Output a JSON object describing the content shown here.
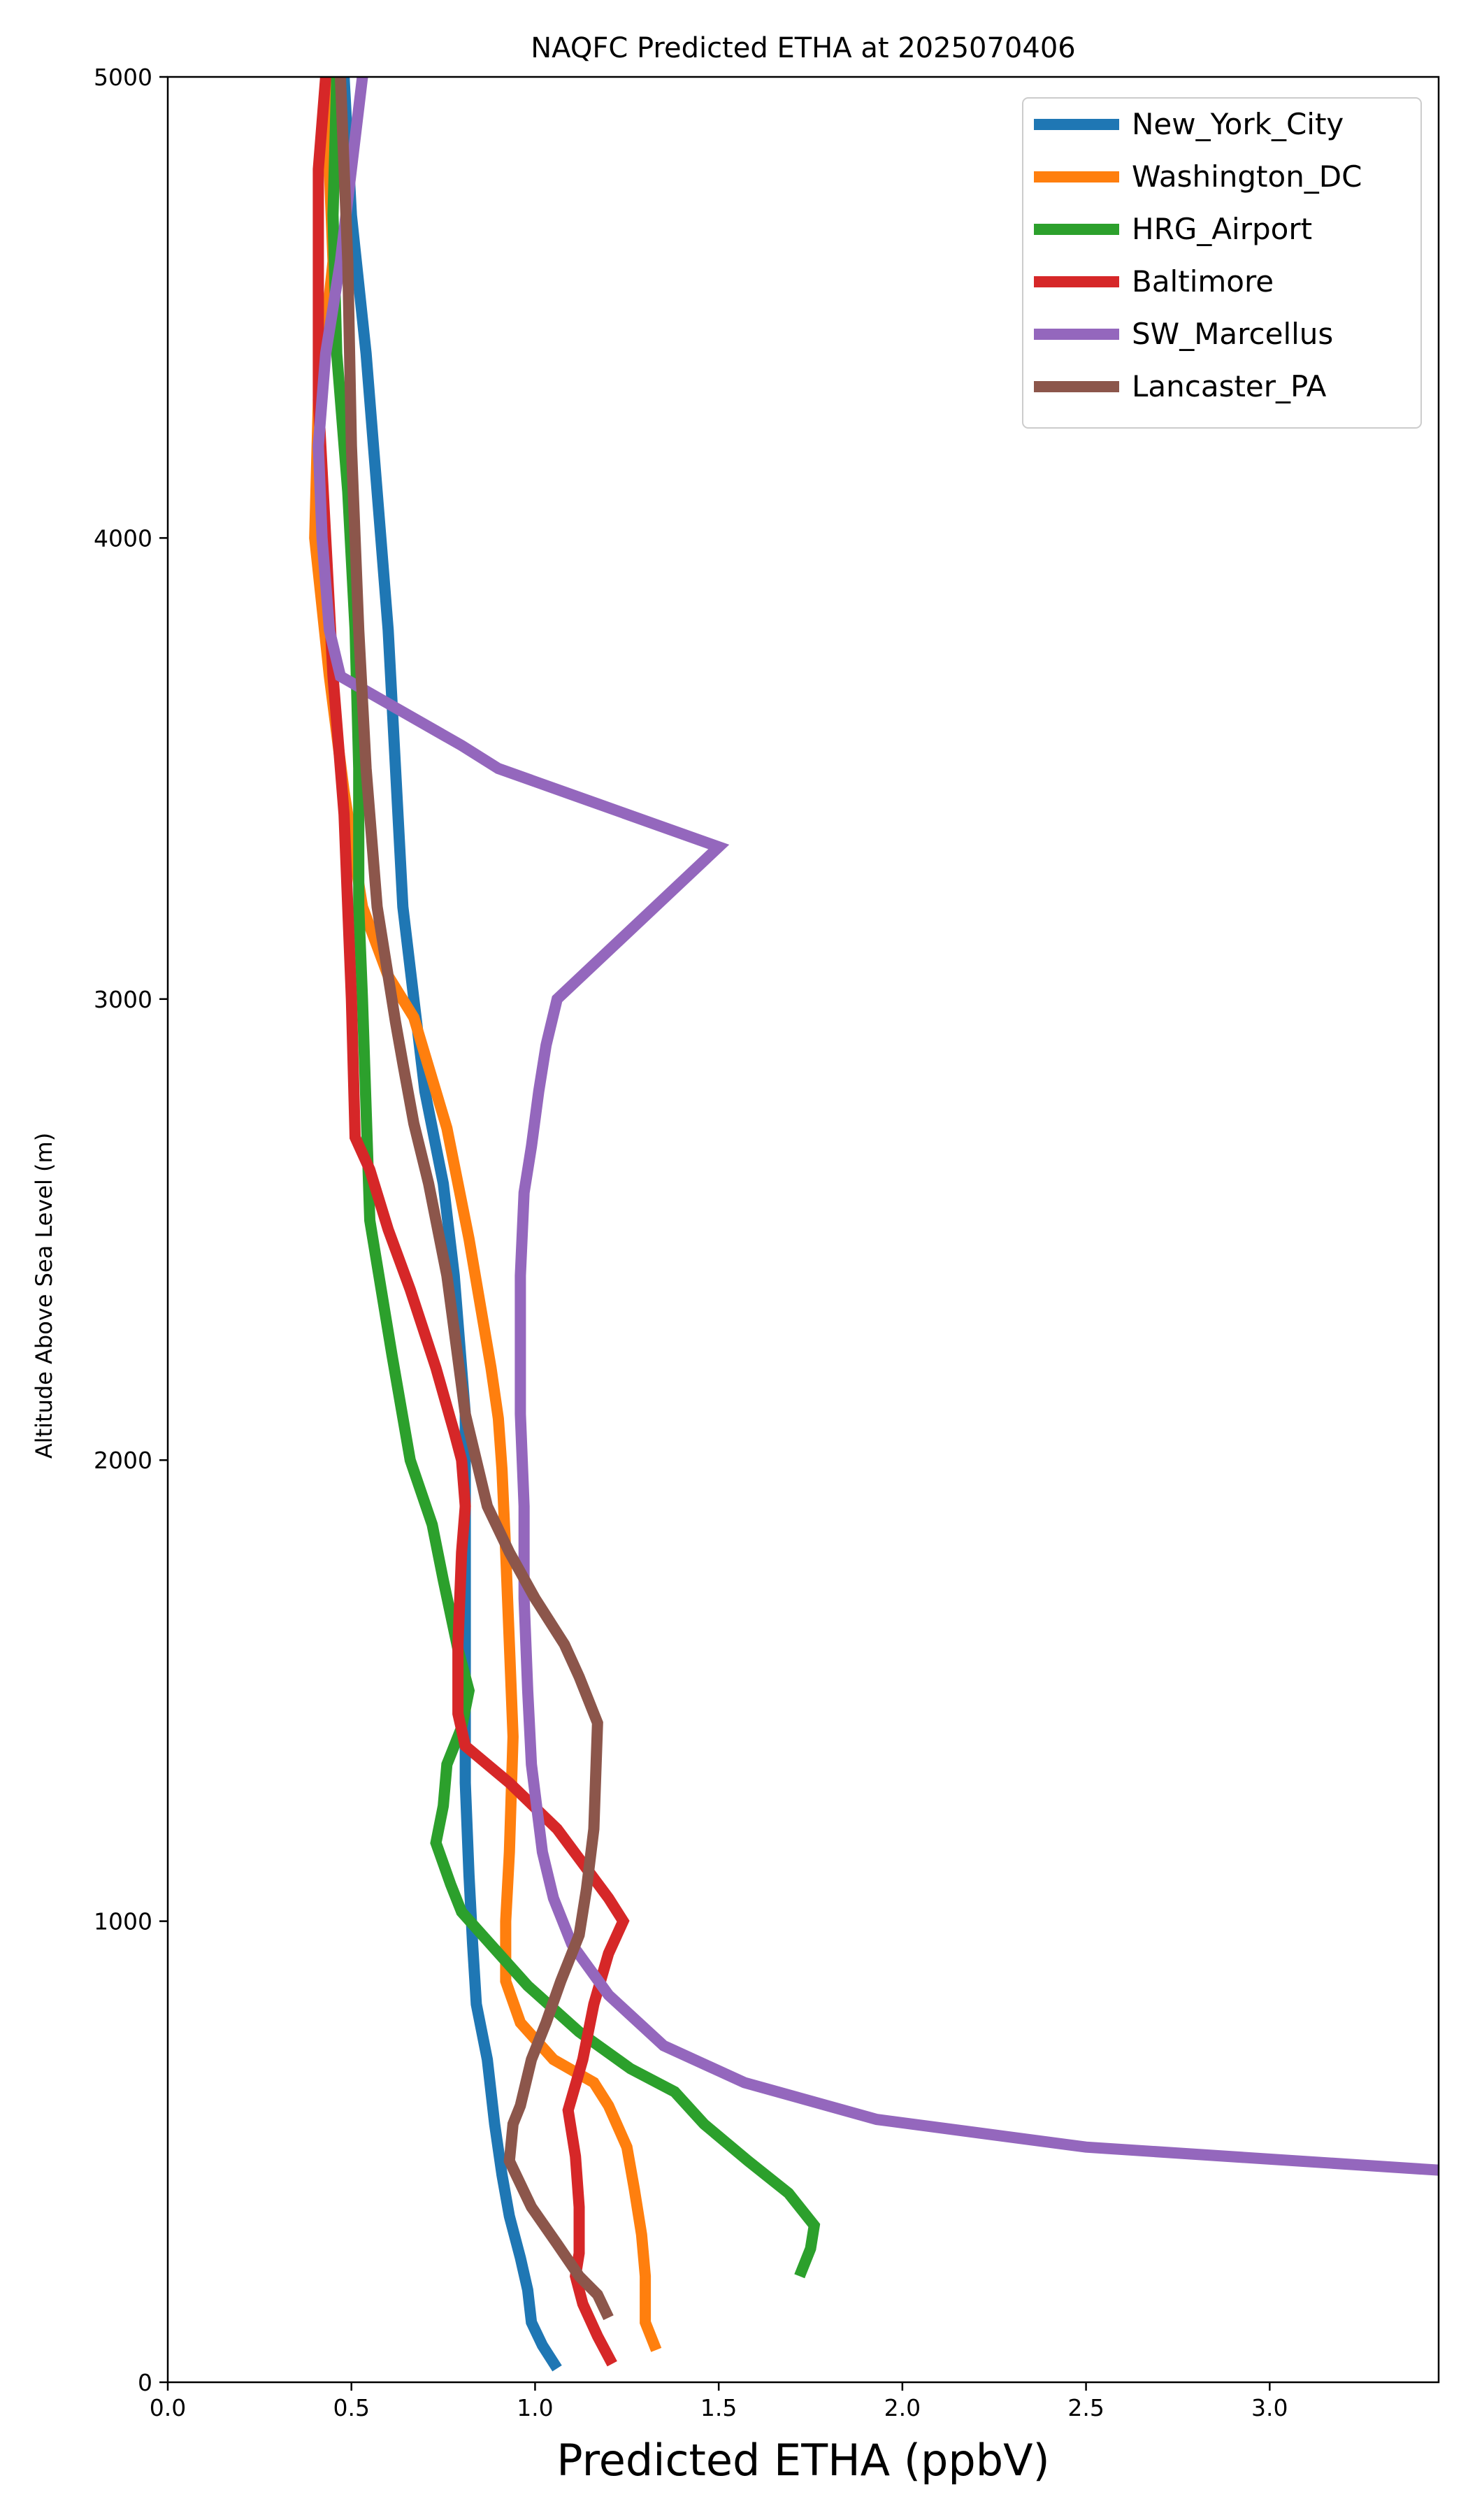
{
  "chart_data": {
    "type": "line",
    "title": "NAQFC Predicted ETHA at 2025070406",
    "xlabel": "Predicted ETHA (ppbV)",
    "ylabel": "Altitude Above Sea Level (m)",
    "xlim": [
      0.0,
      3.46
    ],
    "ylim": [
      0,
      5000
    ],
    "x_ticks": [
      "0.0",
      "0.5",
      "1.0",
      "1.5",
      "2.0",
      "2.5",
      "3.0"
    ],
    "y_ticks": [
      "0",
      "1000",
      "2000",
      "3000",
      "4000",
      "5000"
    ],
    "grid": false,
    "legend_position": "top-right",
    "series": [
      {
        "name": "New_York_City",
        "color": "#1f77b4",
        "x": [
          1.06,
          1.02,
          0.99,
          0.98,
          0.96,
          0.93,
          0.91,
          0.89,
          0.87,
          0.84,
          0.83,
          0.82,
          0.81,
          0.81,
          0.81,
          0.81,
          0.81,
          0.8,
          0.78,
          0.75,
          0.7,
          0.67,
          0.64,
          0.62,
          0.6,
          0.58,
          0.56,
          0.54,
          0.5,
          0.48
        ],
        "y": [
          30,
          80,
          130,
          200,
          270,
          360,
          450,
          560,
          700,
          820,
          950,
          1100,
          1300,
          1500,
          1700,
          1900,
          2100,
          2200,
          2400,
          2600,
          2800,
          3000,
          3200,
          3500,
          3800,
          4000,
          4200,
          4400,
          4700,
          5000
        ]
      },
      {
        "name": "Washington_DC",
        "color": "#ff7f0e",
        "x": [
          1.33,
          1.3,
          1.3,
          1.29,
          1.27,
          1.25,
          1.2,
          1.16,
          1.05,
          0.96,
          0.92,
          0.92,
          0.93,
          0.94,
          0.93,
          0.92,
          0.91,
          0.9,
          0.88,
          0.82,
          0.76,
          0.67,
          0.6,
          0.53,
          0.48,
          0.44,
          0.42,
          0.4,
          0.41,
          0.45,
          0.43
        ],
        "y": [
          70,
          130,
          230,
          320,
          420,
          510,
          600,
          650,
          700,
          780,
          870,
          1000,
          1150,
          1400,
          1600,
          1800,
          1980,
          2090,
          2200,
          2480,
          2720,
          2960,
          3050,
          3200,
          3450,
          3700,
          3850,
          4000,
          4300,
          4600,
          5000
        ]
      },
      {
        "name": "HRG_Airport",
        "color": "#2ca02c",
        "x": [
          1.72,
          1.75,
          1.76,
          1.69,
          1.58,
          1.46,
          1.38,
          1.26,
          1.12,
          0.98,
          0.8,
          0.77,
          0.73,
          0.75,
          0.76,
          0.8,
          0.82,
          0.79,
          0.75,
          0.72,
          0.66,
          0.61,
          0.55,
          0.53,
          0.52,
          0.52,
          0.51,
          0.49,
          0.46,
          0.45,
          0.46
        ],
        "y": [
          230,
          290,
          340,
          410,
          480,
          560,
          630,
          680,
          760,
          860,
          1020,
          1080,
          1170,
          1250,
          1340,
          1420,
          1500,
          1590,
          1740,
          1860,
          2000,
          2230,
          2520,
          3000,
          3200,
          3500,
          3800,
          4100,
          4400,
          4700,
          5000
        ]
      },
      {
        "name": "Baltimore",
        "color": "#d62728",
        "x": [
          1.21,
          1.17,
          1.13,
          1.11,
          1.12,
          1.12,
          1.11,
          1.09,
          1.13,
          1.16,
          1.2,
          1.24,
          1.2,
          1.06,
          0.93,
          0.81,
          0.79,
          0.79,
          0.8,
          0.81,
          0.8,
          0.78,
          0.73,
          0.66,
          0.6,
          0.55,
          0.51,
          0.5,
          0.48,
          0.45,
          0.43,
          0.41,
          0.41,
          0.43
        ],
        "y": [
          40,
          100,
          170,
          230,
          280,
          380,
          490,
          590,
          700,
          820,
          930,
          1000,
          1050,
          1200,
          1300,
          1380,
          1450,
          1600,
          1800,
          1900,
          2000,
          2060,
          2200,
          2370,
          2500,
          2630,
          2700,
          3000,
          3400,
          3700,
          4000,
          4300,
          4800,
          5000
        ]
      },
      {
        "name": "SW_Marcellus",
        "color": "#9467bd",
        "x": [
          3.46,
          2.5,
          1.93,
          1.57,
          1.35,
          1.2,
          1.1,
          1.05,
          1.02,
          0.99,
          0.98,
          0.97,
          0.97,
          0.96,
          0.96,
          0.97,
          0.99,
          1.01,
          1.03,
          1.06,
          1.5,
          0.9,
          0.8,
          0.47,
          0.44,
          0.42,
          0.41,
          0.43,
          0.47,
          0.5,
          0.53
        ],
        "y": [
          460,
          510,
          570,
          650,
          730,
          840,
          950,
          1050,
          1150,
          1340,
          1500,
          1700,
          1900,
          2100,
          2400,
          2580,
          2680,
          2800,
          2900,
          3000,
          3330,
          3500,
          3550,
          3700,
          3800,
          4000,
          4200,
          4400,
          4600,
          4800,
          5000
        ]
      },
      {
        "name": "Lancaster_PA",
        "color": "#8c564b",
        "x": [
          1.2,
          1.17,
          1.12,
          1.06,
          0.99,
          0.93,
          0.94,
          0.96,
          0.99,
          1.03,
          1.07,
          1.12,
          1.14,
          1.16,
          1.17,
          1.12,
          1.08,
          1.0,
          0.93,
          0.87,
          0.81,
          0.76,
          0.71,
          0.67,
          0.64,
          0.62,
          0.59,
          0.57,
          0.54,
          0.52,
          0.5,
          0.49,
          0.47
        ],
        "y": [
          140,
          190,
          230,
          300,
          380,
          480,
          560,
          600,
          700,
          780,
          870,
          970,
          1070,
          1200,
          1430,
          1530,
          1600,
          1700,
          1800,
          1900,
          2100,
          2400,
          2600,
          2730,
          2860,
          2950,
          3100,
          3200,
          3500,
          3800,
          4200,
          4600,
          5000
        ]
      }
    ]
  }
}
